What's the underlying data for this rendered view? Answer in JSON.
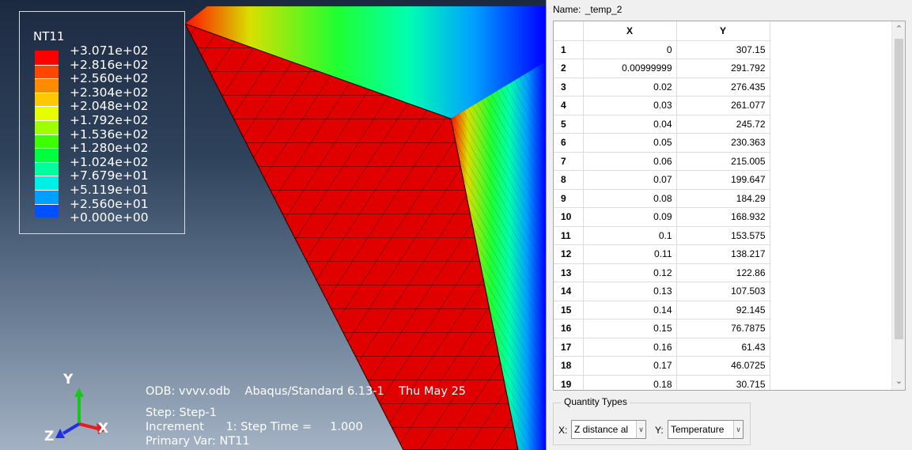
{
  "viewport": {
    "legend": {
      "title": "NT11",
      "labels": [
        "+3.071e+02",
        "+2.816e+02",
        "+2.560e+02",
        "+2.304e+02",
        "+2.048e+02",
        "+1.792e+02",
        "+1.536e+02",
        "+1.280e+02",
        "+1.024e+02",
        "+7.679e+01",
        "+5.119e+01",
        "+2.560e+01",
        "+0.000e+00"
      ],
      "colors": [
        "#ff0000",
        "#ff4600",
        "#ff8c00",
        "#ffc800",
        "#e6ff00",
        "#a0ff00",
        "#3cff00",
        "#00ff3c",
        "#00ff9c",
        "#00f0e6",
        "#00a0ff",
        "#0050ff",
        "#0000ff"
      ]
    },
    "triad": {
      "y": "Y",
      "x": "X",
      "z": "Z"
    },
    "info": {
      "line1": "ODB: vvvv.odb    Abaqus/Standard 6.13-1    Thu May 25",
      "line2": "Step: Step-1",
      "line3": "Increment      1: Step Time =     1.000",
      "line4": "Primary Var: NT11"
    }
  },
  "panel": {
    "name_label": "Name:",
    "name_value": "_temp_2",
    "table": {
      "columns": [
        "X",
        "Y"
      ],
      "rows": [
        [
          "1",
          "0",
          "307.15"
        ],
        [
          "2",
          "0.00999999",
          "291.792"
        ],
        [
          "3",
          "0.02",
          "276.435"
        ],
        [
          "4",
          "0.03",
          "261.077"
        ],
        [
          "5",
          "0.04",
          "245.72"
        ],
        [
          "6",
          "0.05",
          "230.363"
        ],
        [
          "7",
          "0.06",
          "215.005"
        ],
        [
          "8",
          "0.07",
          "199.647"
        ],
        [
          "9",
          "0.08",
          "184.29"
        ],
        [
          "10",
          "0.09",
          "168.932"
        ],
        [
          "11",
          "0.1",
          "153.575"
        ],
        [
          "12",
          "0.11",
          "138.217"
        ],
        [
          "13",
          "0.12",
          "122.86"
        ],
        [
          "14",
          "0.13",
          "107.503"
        ],
        [
          "15",
          "0.14",
          "92.145"
        ],
        [
          "16",
          "0.15",
          "76.7875"
        ],
        [
          "17",
          "0.16",
          "61.43"
        ],
        [
          "18",
          "0.17",
          "46.0725"
        ],
        [
          "19",
          "0.18",
          "30.715"
        ]
      ]
    },
    "quantity_types": {
      "title": "Quantity Types",
      "x_label": "X:",
      "x_value": "Z distance al",
      "y_label": "Y:",
      "y_value": "Temperature"
    }
  }
}
